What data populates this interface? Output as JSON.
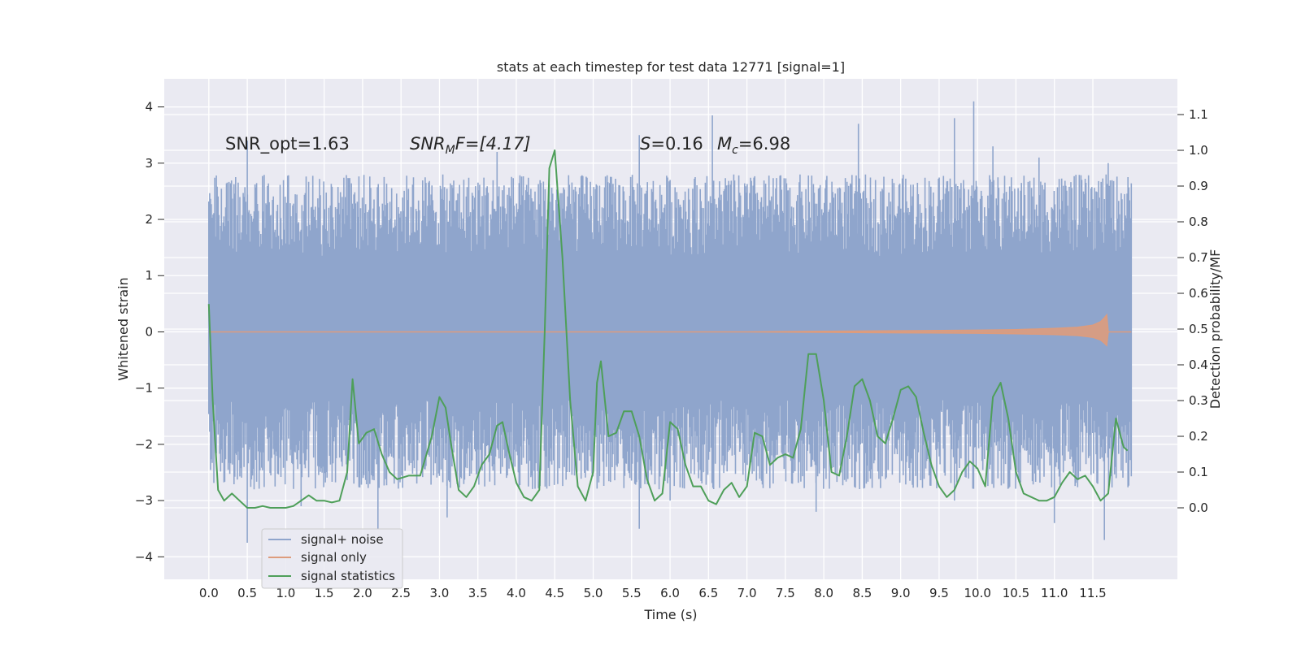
{
  "chart_data": {
    "type": "line",
    "title": "stats at each timestep for test data 12771 [signal=1]",
    "xlabel": "Time (s)",
    "ylabel_left": "Whitened strain",
    "ylabel_right": "Detection probability/MF",
    "xlim": [
      -0.58,
      12.6
    ],
    "ylim_left": [
      -4.4,
      4.5
    ],
    "ylim_right": [
      -0.2,
      1.2
    ],
    "x_ticks": [
      "0.0",
      "0.5",
      "1.0",
      "1.5",
      "2.0",
      "2.5",
      "3.0",
      "3.5",
      "4.0",
      "4.5",
      "5.0",
      "5.5",
      "6.0",
      "6.5",
      "7.0",
      "7.5",
      "8.0",
      "8.5",
      "9.0",
      "9.5",
      "10.0",
      "10.5",
      "11.0",
      "11.5"
    ],
    "y_ticks_left": [
      "−4",
      "−3",
      "−2",
      "−1",
      "0",
      "1",
      "2",
      "3",
      "4"
    ],
    "y_ticks_right": [
      "0.0",
      "0.1",
      "0.2",
      "0.3",
      "0.4",
      "0.5",
      "0.6",
      "0.7",
      "0.8",
      "0.9",
      "1.0",
      "1.1"
    ],
    "grid": true,
    "legend_position": "lower-left",
    "annotations": {
      "snr_opt": "SNR_opt=1.63",
      "snr_mf_italic": "SNR",
      "snr_mf_sub": "M",
      "snr_mf_rest": "F=[4.17]",
      "s_italic": "S",
      "s_rest": "=0.16",
      "mc_italic": "M",
      "mc_sub": "c",
      "mc_rest": "=6.98"
    },
    "series": [
      {
        "name": "signal+ noise",
        "color": "#8fa5cc",
        "axis": "left",
        "x_range": [
          0.0,
          12.0
        ],
        "core_band": [
          -1.2,
          1.35
        ],
        "typical_envelope": [
          -2.8,
          2.8
        ],
        "peaks_high": [
          [
            0.5,
            3.4
          ],
          [
            3.75,
            3.2
          ],
          [
            5.6,
            3.5
          ],
          [
            6.55,
            3.85
          ],
          [
            8.45,
            3.7
          ],
          [
            9.7,
            3.8
          ],
          [
            9.95,
            4.1
          ],
          [
            10.2,
            3.3
          ],
          [
            10.8,
            3.1
          ],
          [
            11.7,
            3.0
          ]
        ],
        "peaks_low": [
          [
            0.5,
            -3.75
          ],
          [
            1.2,
            -3.1
          ],
          [
            2.2,
            -3.5
          ],
          [
            3.1,
            -3.3
          ],
          [
            5.6,
            -3.5
          ],
          [
            6.0,
            -3.0
          ],
          [
            7.9,
            -3.2
          ],
          [
            9.7,
            -3.0
          ],
          [
            11.0,
            -3.4
          ],
          [
            11.65,
            -3.7
          ]
        ]
      },
      {
        "name": "signal only",
        "color": "#dd9c7d",
        "axis": "left",
        "x": [
          0.0,
          7.0,
          8.0,
          9.0,
          10.0,
          10.5,
          11.0,
          11.3,
          11.5,
          11.6,
          11.65,
          11.68,
          11.7,
          12.0
        ],
        "amplitude": [
          0.0,
          0.0,
          0.01,
          0.02,
          0.03,
          0.04,
          0.06,
          0.08,
          0.12,
          0.18,
          0.25,
          0.3,
          0.0,
          0.0
        ]
      },
      {
        "name": "signal statistics",
        "color": "#4e9f59",
        "axis": "right",
        "x": [
          0.0,
          0.05,
          0.12,
          0.2,
          0.3,
          0.4,
          0.5,
          0.6,
          0.7,
          0.8,
          0.9,
          1.0,
          1.1,
          1.2,
          1.3,
          1.4,
          1.5,
          1.6,
          1.7,
          1.8,
          1.87,
          1.95,
          2.05,
          2.15,
          2.25,
          2.35,
          2.45,
          2.6,
          2.75,
          2.9,
          3.0,
          3.08,
          3.15,
          3.25,
          3.35,
          3.45,
          3.55,
          3.65,
          3.75,
          3.82,
          3.9,
          4.0,
          4.1,
          4.2,
          4.3,
          4.37,
          4.43,
          4.5,
          4.6,
          4.7,
          4.8,
          4.9,
          5.0,
          5.05,
          5.1,
          5.2,
          5.3,
          5.4,
          5.5,
          5.6,
          5.7,
          5.8,
          5.9,
          6.0,
          6.1,
          6.2,
          6.3,
          6.4,
          6.5,
          6.6,
          6.7,
          6.8,
          6.9,
          7.0,
          7.1,
          7.2,
          7.3,
          7.4,
          7.5,
          7.6,
          7.7,
          7.8,
          7.9,
          8.0,
          8.1,
          8.2,
          8.3,
          8.4,
          8.5,
          8.6,
          8.7,
          8.8,
          8.9,
          9.0,
          9.1,
          9.2,
          9.3,
          9.4,
          9.5,
          9.6,
          9.7,
          9.8,
          9.9,
          10.0,
          10.1,
          10.2,
          10.3,
          10.4,
          10.5,
          10.6,
          10.7,
          10.8,
          10.9,
          11.0,
          11.1,
          11.2,
          11.3,
          11.4,
          11.5,
          11.6,
          11.7,
          11.8,
          11.9,
          11.95
        ],
        "values": [
          0.57,
          0.3,
          0.05,
          0.02,
          0.04,
          0.02,
          0.0,
          0.0,
          0.005,
          0.0,
          0.0,
          0.0,
          0.005,
          0.02,
          0.035,
          0.02,
          0.02,
          0.015,
          0.02,
          0.1,
          0.36,
          0.18,
          0.21,
          0.22,
          0.15,
          0.1,
          0.08,
          0.09,
          0.09,
          0.2,
          0.31,
          0.28,
          0.18,
          0.05,
          0.03,
          0.06,
          0.12,
          0.15,
          0.23,
          0.24,
          0.16,
          0.07,
          0.03,
          0.02,
          0.05,
          0.5,
          0.95,
          1.0,
          0.7,
          0.3,
          0.06,
          0.02,
          0.1,
          0.35,
          0.41,
          0.2,
          0.21,
          0.27,
          0.27,
          0.2,
          0.08,
          0.02,
          0.04,
          0.24,
          0.22,
          0.12,
          0.06,
          0.06,
          0.02,
          0.01,
          0.05,
          0.07,
          0.03,
          0.06,
          0.21,
          0.2,
          0.12,
          0.14,
          0.15,
          0.14,
          0.22,
          0.43,
          0.43,
          0.3,
          0.1,
          0.09,
          0.2,
          0.34,
          0.36,
          0.3,
          0.2,
          0.18,
          0.25,
          0.33,
          0.34,
          0.31,
          0.21,
          0.12,
          0.06,
          0.03,
          0.05,
          0.1,
          0.13,
          0.11,
          0.06,
          0.31,
          0.35,
          0.25,
          0.1,
          0.04,
          0.03,
          0.02,
          0.02,
          0.03,
          0.07,
          0.1,
          0.08,
          0.09,
          0.06,
          0.02,
          0.04,
          0.25,
          0.17,
          0.16
        ]
      }
    ]
  }
}
